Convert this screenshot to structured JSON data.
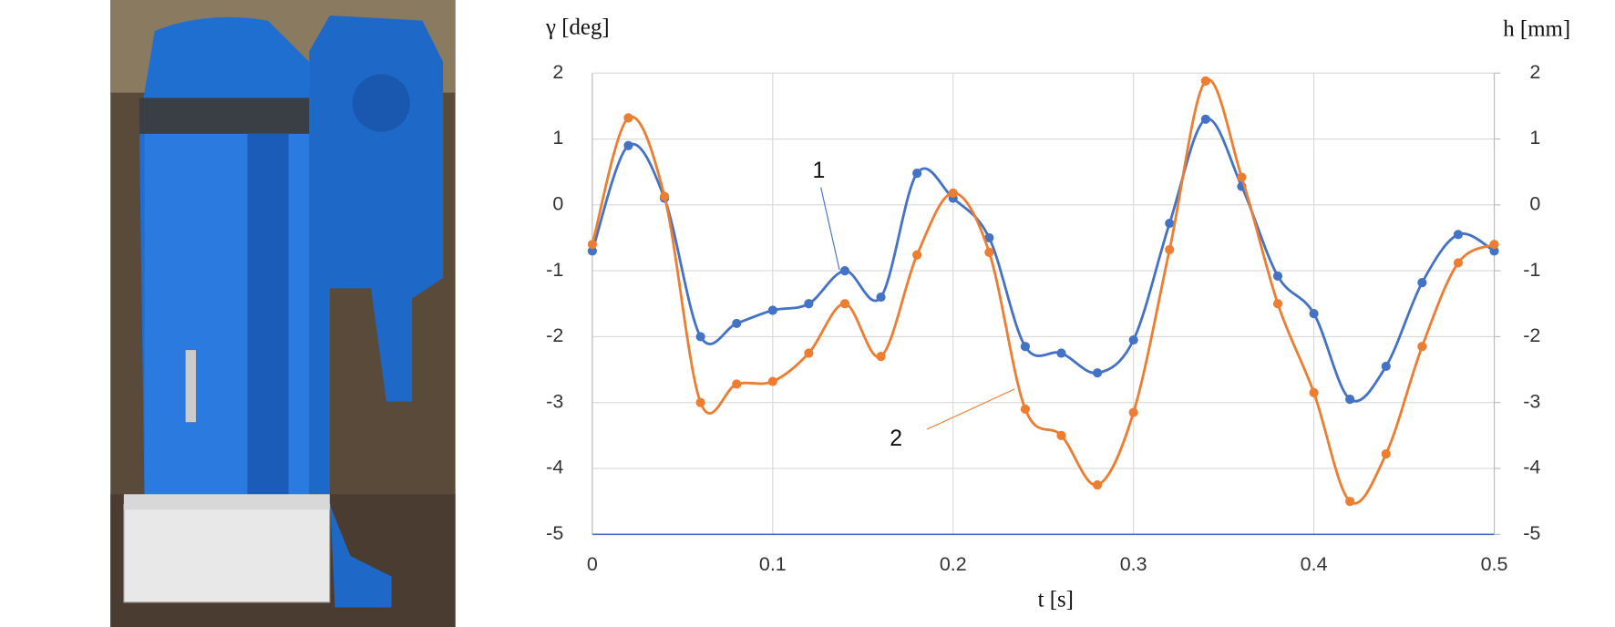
{
  "chart_data": {
    "type": "line",
    "ylabel": "γ [deg]",
    "y2label": "h [mm]",
    "xlabel": "t [s]",
    "x": [
      0,
      0.02,
      0.04,
      0.06,
      0.08,
      0.1,
      0.12,
      0.14,
      0.16,
      0.18,
      0.2,
      0.22,
      0.24,
      0.26,
      0.28,
      0.3,
      0.32,
      0.34,
      0.36,
      0.38,
      0.4,
      0.42,
      0.44,
      0.46,
      0.48,
      0.5
    ],
    "series": [
      {
        "name": "1",
        "color": "#4472c4",
        "values": [
          -0.7,
          0.9,
          0.1,
          -2.0,
          -1.8,
          -1.6,
          -1.5,
          -1.0,
          -1.4,
          0.48,
          0.1,
          -0.5,
          -2.15,
          -2.25,
          -2.55,
          -2.05,
          -0.28,
          1.3,
          0.28,
          -1.08,
          -1.65,
          -2.95,
          -2.45,
          -1.18,
          -0.45,
          -0.7
        ]
      },
      {
        "name": "2",
        "color": "#ed7d31",
        "axis": "y2",
        "values": [
          -0.6,
          1.32,
          0.13,
          -3.0,
          -2.72,
          -2.68,
          -2.25,
          -1.5,
          -2.3,
          -0.76,
          0.18,
          -0.72,
          -3.1,
          -3.5,
          -4.25,
          -3.15,
          -0.68,
          1.88,
          0.42,
          -1.5,
          -2.85,
          -4.5,
          -3.78,
          -2.15,
          -0.88,
          -0.6
        ]
      }
    ],
    "xlim": [
      0,
      0.5
    ],
    "xticks": [
      0,
      0.1,
      0.2,
      0.3,
      0.4,
      0.5
    ],
    "ylim": [
      -5,
      2
    ],
    "yticks": [
      -5,
      -4,
      -3,
      -2,
      -1,
      0,
      1,
      2
    ],
    "y2lim": [
      -5,
      2
    ],
    "y2ticks": [
      -5,
      -4,
      -3,
      -2,
      -1,
      0,
      1,
      2
    ],
    "grid": true,
    "smooth": true
  }
}
